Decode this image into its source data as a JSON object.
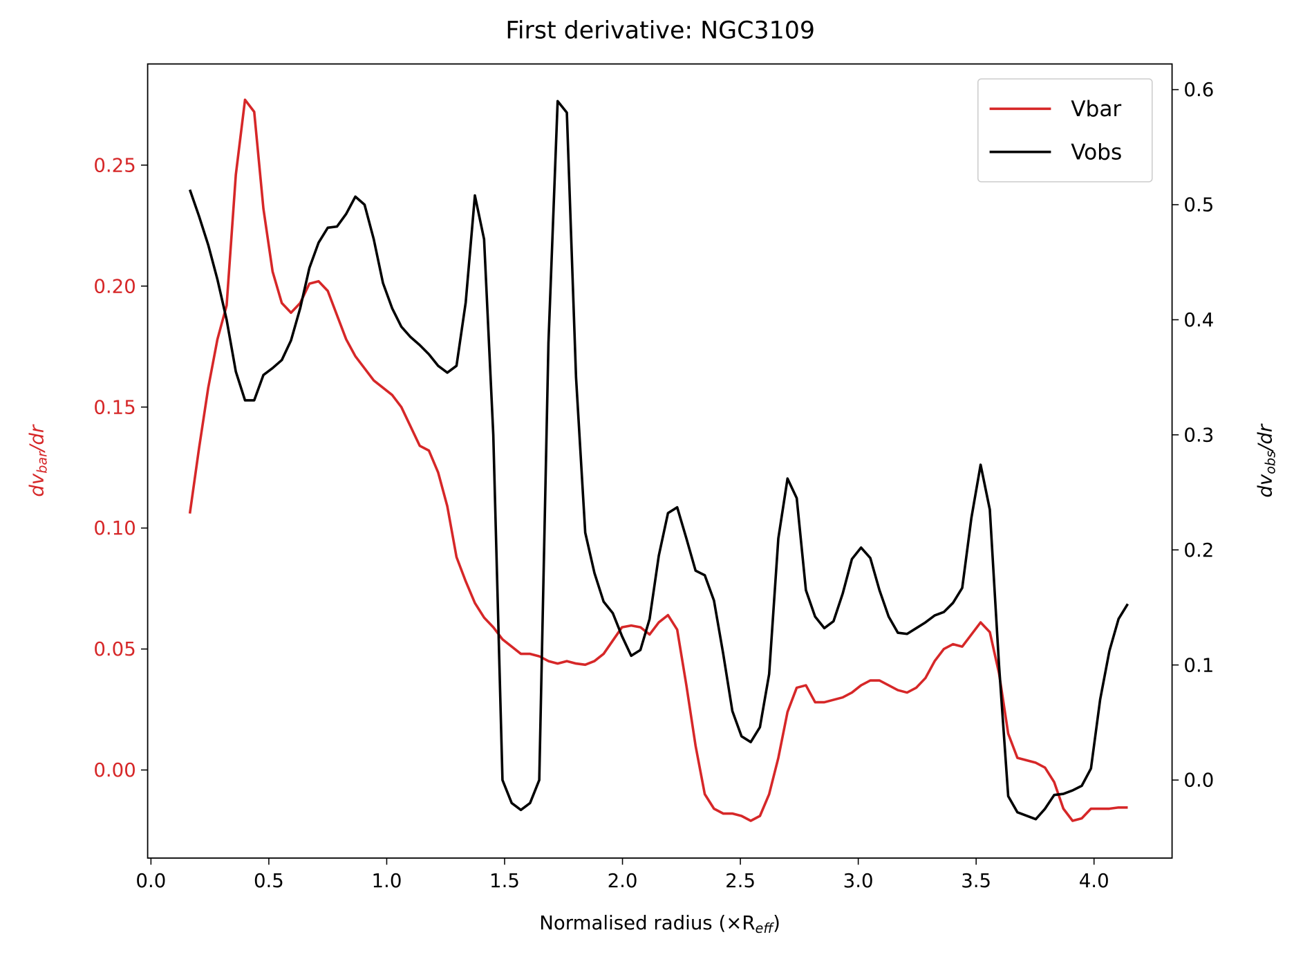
{
  "chart_data": {
    "type": "line",
    "title": "First derivative: NGC3109",
    "xlabel": {
      "parts": [
        "Normalised radius (×R",
        "eff",
        ")"
      ]
    },
    "ylabel": {
      "parts": [
        "dv",
        "bar",
        "/dr"
      ]
    },
    "y2label": {
      "parts": [
        "dv",
        "obs",
        "/dr"
      ]
    },
    "ylabel_color": "#d62728",
    "legend": "upper right",
    "xlim": [
      -0.014,
      4.331
    ],
    "ylim": [
      -0.0364,
      0.2918
    ],
    "y2lim": [
      -0.0678,
      0.6223
    ],
    "xticks": [
      {
        "value": 0,
        "label": "0.0"
      },
      {
        "value": 0.5,
        "label": "0.5"
      },
      {
        "value": 1,
        "label": "1.0"
      },
      {
        "value": 1.5,
        "label": "1.5"
      },
      {
        "value": 2,
        "label": "2.0"
      },
      {
        "value": 2.5,
        "label": "2.5"
      },
      {
        "value": 3,
        "label": "3.0"
      },
      {
        "value": 3.5,
        "label": "3.5"
      },
      {
        "value": 4,
        "label": "4.0"
      }
    ],
    "yticks": [
      {
        "value": 0,
        "label": "0.00"
      },
      {
        "value": 0.05,
        "label": "0.05"
      },
      {
        "value": 0.1,
        "label": "0.10"
      },
      {
        "value": 0.15,
        "label": "0.15"
      },
      {
        "value": 0.2,
        "label": "0.20"
      },
      {
        "value": 0.25,
        "label": "0.25"
      }
    ],
    "y2ticks": [
      {
        "value": 0,
        "label": "0.0"
      },
      0.1,
      0.2,
      0.3,
      0.4,
      0.5,
      0.6
    ],
    "x": [
      0.165,
      0.204,
      0.243,
      0.282,
      0.321,
      0.36,
      0.399,
      0.438,
      0.477,
      0.516,
      0.555,
      0.594,
      0.633,
      0.672,
      0.711,
      0.75,
      0.789,
      0.828,
      0.867,
      0.906,
      0.945,
      0.984,
      1.023,
      1.062,
      1.101,
      1.14,
      1.179,
      1.218,
      1.257,
      1.296,
      1.335,
      1.374,
      1.413,
      1.452,
      1.491,
      1.53,
      1.569,
      1.608,
      1.647,
      1.686,
      1.725,
      1.764,
      1.803,
      1.842,
      1.881,
      1.92,
      1.959,
      1.998,
      2.037,
      2.076,
      2.115,
      2.154,
      2.193,
      2.232,
      2.271,
      2.31,
      2.349,
      2.388,
      2.427,
      2.466,
      2.505,
      2.544,
      2.583,
      2.622,
      2.661,
      2.7,
      2.739,
      2.778,
      2.817,
      2.856,
      2.895,
      2.934,
      2.973,
      3.012,
      3.051,
      3.09,
      3.129,
      3.168,
      3.207,
      3.246,
      3.285,
      3.324,
      3.363,
      3.402,
      3.441,
      3.48,
      3.519,
      3.558,
      3.597,
      3.636,
      3.675,
      3.714,
      3.753,
      3.792,
      3.831,
      3.87,
      3.909,
      3.948,
      3.987,
      4.026,
      4.065,
      4.104,
      4.143
    ],
    "series": [
      {
        "name": "Vbar",
        "color": "#d62728",
        "axis": "y",
        "values": [
          0.106,
          0.133,
          0.158,
          0.178,
          0.192,
          0.246,
          0.277,
          0.272,
          0.232,
          0.206,
          0.193,
          0.189,
          0.193,
          0.201,
          0.202,
          0.198,
          0.188,
          0.178,
          0.171,
          0.166,
          0.161,
          0.158,
          0.155,
          0.15,
          0.142,
          0.134,
          0.132,
          0.123,
          0.109,
          0.088,
          0.078,
          0.069,
          0.063,
          0.059,
          0.054,
          0.051,
          0.048,
          0.048,
          0.047,
          0.045,
          0.044,
          0.045,
          0.044,
          0.0435,
          0.045,
          0.048,
          0.0535,
          0.059,
          0.0597,
          0.059,
          0.056,
          0.061,
          0.064,
          0.058,
          0.035,
          0.01,
          -0.01,
          -0.016,
          -0.018,
          -0.018,
          -0.019,
          -0.021,
          -0.019,
          -0.01,
          0.005,
          0.024,
          0.034,
          0.035,
          0.028,
          0.028,
          0.029,
          0.03,
          0.032,
          0.035,
          0.037,
          0.037,
          0.035,
          0.033,
          0.032,
          0.034,
          0.038,
          0.045,
          0.05,
          0.052,
          0.051,
          0.056,
          0.061,
          0.057,
          0.04,
          0.015,
          0.005,
          0.004,
          0.003,
          0.001,
          -0.005,
          -0.016,
          -0.021,
          -0.02,
          -0.016,
          -0.016,
          -0.016,
          -0.0155,
          -0.0155
        ]
      },
      {
        "name": "Vobs",
        "color": "#000000",
        "axis": "y2",
        "values": [
          0.513,
          0.49,
          0.465,
          0.435,
          0.4,
          0.355,
          0.33,
          0.33,
          0.352,
          0.358,
          0.365,
          0.382,
          0.41,
          0.445,
          0.467,
          0.48,
          0.481,
          0.492,
          0.507,
          0.5,
          0.47,
          0.432,
          0.41,
          0.394,
          0.385,
          0.378,
          0.37,
          0.36,
          0.354,
          0.36,
          0.415,
          0.508,
          0.47,
          0.3,
          0.0,
          -0.02,
          -0.026,
          -0.02,
          0.0,
          0.38,
          0.59,
          0.58,
          0.35,
          0.215,
          0.18,
          0.155,
          0.145,
          0.125,
          0.108,
          0.113,
          0.14,
          0.195,
          0.232,
          0.237,
          0.21,
          0.182,
          0.178,
          0.156,
          0.11,
          0.06,
          0.038,
          0.033,
          0.046,
          0.092,
          0.21,
          0.262,
          0.245,
          0.165,
          0.142,
          0.132,
          0.138,
          0.162,
          0.192,
          0.202,
          0.193,
          0.165,
          0.142,
          0.128,
          0.127,
          0.132,
          0.137,
          0.143,
          0.146,
          0.154,
          0.167,
          0.228,
          0.274,
          0.235,
          0.1,
          -0.014,
          -0.028,
          -0.031,
          -0.034,
          -0.025,
          -0.013,
          -0.012,
          -0.009,
          -0.005,
          0.01,
          0.07,
          0.112,
          0.14,
          0.153
        ]
      }
    ]
  }
}
